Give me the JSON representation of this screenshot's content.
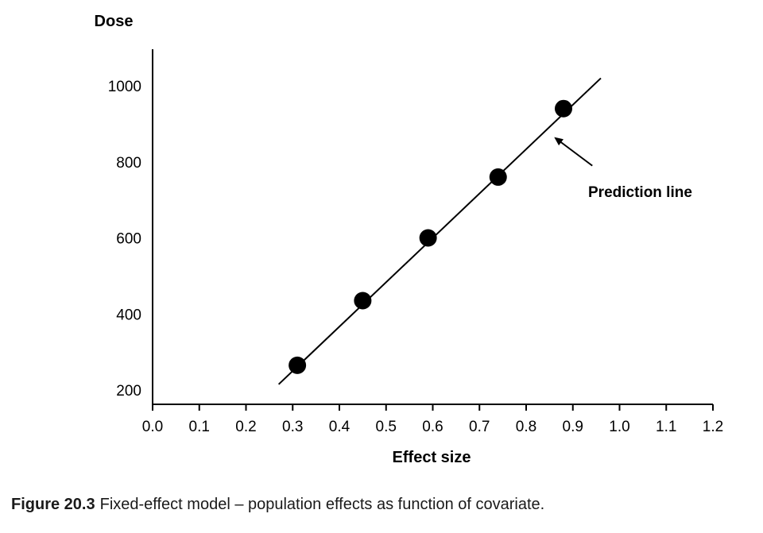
{
  "chart_data": {
    "type": "scatter",
    "ylabel": "Dose",
    "xlabel": "Effect size",
    "xlim": [
      0.0,
      1.2
    ],
    "ylim": [
      180,
      1100
    ],
    "x_ticks": [
      "0.0",
      "0.1",
      "0.2",
      "0.3",
      "0.4",
      "0.5",
      "0.6",
      "0.7",
      "0.8",
      "0.9",
      "1.0",
      "1.1",
      "1.2"
    ],
    "y_ticks": [
      "200",
      "400",
      "600",
      "800",
      "1000"
    ],
    "grid": false,
    "legend": "none",
    "points": [
      {
        "x": 0.31,
        "y": 265
      },
      {
        "x": 0.45,
        "y": 435
      },
      {
        "x": 0.59,
        "y": 600
      },
      {
        "x": 0.74,
        "y": 760
      },
      {
        "x": 0.88,
        "y": 940
      }
    ],
    "prediction_line": {
      "from": {
        "x": 0.27,
        "y": 215
      },
      "to": {
        "x": 0.96,
        "y": 1020
      }
    },
    "annotation": {
      "text": "Prediction line",
      "points_to": {
        "x": 0.86,
        "y": 865
      }
    },
    "colors": {
      "marker": "#000000",
      "line": "#000000",
      "axes": "#000000"
    }
  },
  "caption": {
    "label": "Figure 20.3",
    "text": "Fixed-effect model – population effects as function of covariate."
  }
}
